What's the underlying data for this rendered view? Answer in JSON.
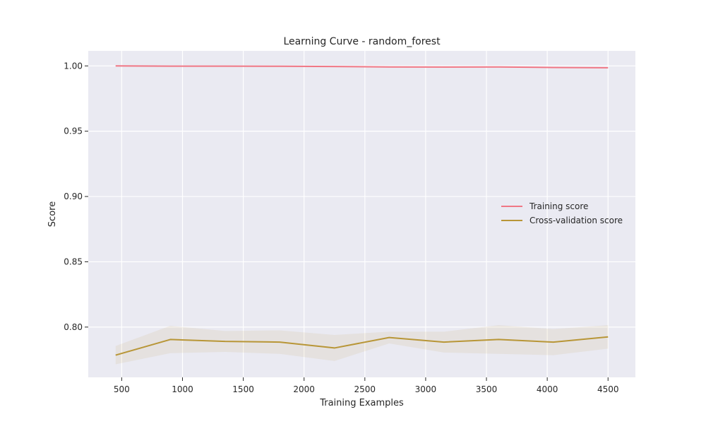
{
  "chart_data": {
    "type": "line",
    "title": "Learning Curve - random_forest",
    "xlabel": "Training Examples",
    "ylabel": "Score",
    "xlim": [
      225,
      4725
    ],
    "ylim": [
      0.7615,
      1.0115
    ],
    "xticks": [
      500,
      1000,
      1500,
      2000,
      2500,
      3000,
      3500,
      4000,
      4500
    ],
    "xtick_labels": [
      "500",
      "1000",
      "1500",
      "2000",
      "2500",
      "3000",
      "3500",
      "4000",
      "4500"
    ],
    "yticks": [
      0.8,
      0.85,
      0.9,
      0.95,
      1.0
    ],
    "ytick_labels": [
      "0.80",
      "0.85",
      "0.90",
      "0.95",
      "1.00"
    ],
    "grid": true,
    "legend_position": "center-right",
    "x": [
      450,
      900,
      1350,
      1800,
      2250,
      2700,
      3150,
      3600,
      4050,
      4500
    ],
    "series": [
      {
        "name": "Training score",
        "color": "#f07785",
        "values": [
          1.0,
          0.9998,
          0.9998,
          0.9997,
          0.9995,
          0.9992,
          0.9991,
          0.9992,
          0.9988,
          0.9986
        ],
        "band_lower": [
          0.9999,
          0.9997,
          0.9997,
          0.9996,
          0.9994,
          0.9991,
          0.999,
          0.9991,
          0.9987,
          0.9985
        ],
        "band_upper": [
          1.0,
          0.9999,
          0.9999,
          0.9998,
          0.9996,
          0.9993,
          0.9992,
          0.9993,
          0.9989,
          0.9987
        ]
      },
      {
        "name": "Cross-validation score",
        "color": "#b89637",
        "values": [
          0.7785,
          0.7905,
          0.789,
          0.7885,
          0.784,
          0.792,
          0.7885,
          0.7905,
          0.7885,
          0.7925
        ],
        "band_lower": [
          0.7715,
          0.78,
          0.781,
          0.7795,
          0.774,
          0.7875,
          0.7805,
          0.7795,
          0.7785,
          0.7835
        ],
        "band_upper": [
          0.7855,
          0.801,
          0.797,
          0.7975,
          0.794,
          0.7965,
          0.7965,
          0.8015,
          0.7985,
          0.8015
        ]
      }
    ]
  }
}
